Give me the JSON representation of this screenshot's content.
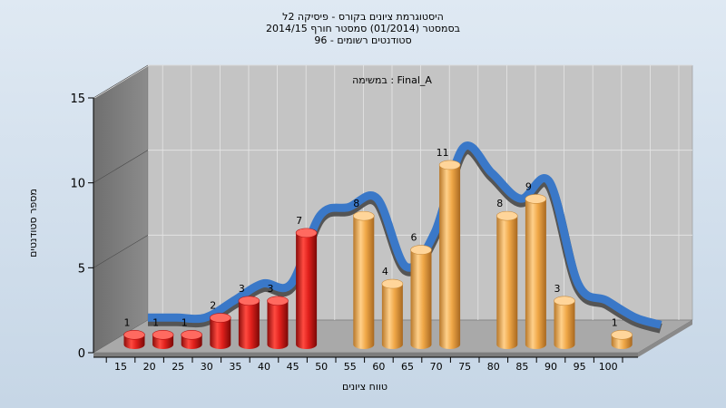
{
  "chart_data": {
    "type": "bar",
    "title_lines": [
      "היסטוגרמת ציונים בקורס - פיסיקה 2ל",
      "בסמסטר  (01/2014)  סמסטר חורף 2014/15",
      "סטודנטים רשומים - 96"
    ],
    "subtitle": "במשימה : Final_A",
    "xlabel": "טווח ציונים",
    "ylabel": "מספר סטודנטים",
    "ylim": [
      0,
      15
    ],
    "yticks": [
      0,
      5,
      10,
      15
    ],
    "categories": [
      "15",
      "20",
      "25",
      "30",
      "35",
      "40",
      "45",
      "50",
      "55",
      "60",
      "65",
      "70",
      "75",
      "80",
      "85",
      "90",
      "95",
      "100"
    ],
    "values": [
      1,
      1,
      1,
      2,
      3,
      3,
      7,
      null,
      8,
      4,
      6,
      11,
      null,
      8,
      9,
      3,
      null,
      1
    ],
    "bar_colors": {
      "low": "#e0201c",
      "high": "#f0a848",
      "threshold": 50
    },
    "smooth_curve": {
      "color_front": "#3a78c8",
      "color_back": "#555555"
    },
    "grid": true,
    "legend": "none"
  }
}
